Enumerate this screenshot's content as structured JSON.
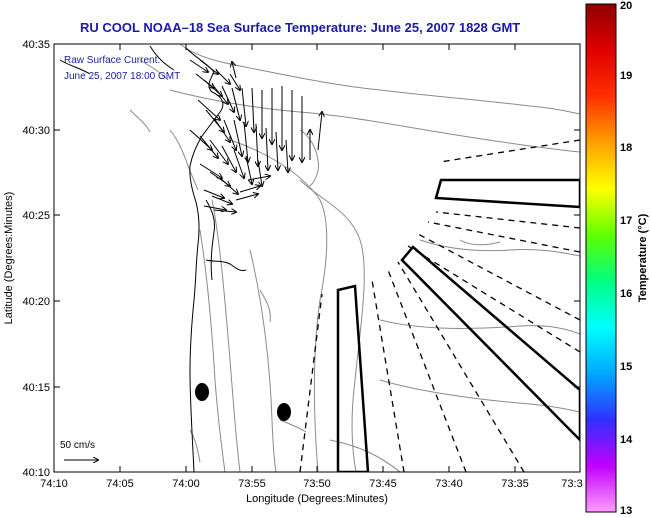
{
  "figure": {
    "title": "RU COOL   NOAA–18  Sea Surface Temperature:  June 25, 2007 1828 GMT",
    "annotation_line1": "Raw Surface Current:",
    "annotation_line2": "June 25, 2007 18:00 GMT",
    "scale_label": "50 cm/s",
    "xlabel": "Longitude (Degrees:Minutes)",
    "ylabel": "Latitude (Degrees:Minutes)",
    "x_ticks": [
      "74:10",
      "74:05",
      "74:00",
      "73:55",
      "73:50",
      "73:45",
      "73:40",
      "73:35",
      "73:3"
    ],
    "y_ticks": [
      "40:35",
      "40:30",
      "40:25",
      "40:20",
      "40:15",
      "40:10"
    ],
    "x_range_minutes_west": [
      10,
      30
    ],
    "y_range_minutes_north": [
      10,
      35
    ],
    "colors": {
      "title": "#1a1aa8",
      "coast": "#000000",
      "contour": "#8a8a8a",
      "box": "#000000"
    }
  },
  "colorbar": {
    "label": "Temperature (°C)",
    "ticks": [
      "20",
      "19",
      "18",
      "17",
      "16",
      "15",
      "14",
      "13"
    ],
    "range": [
      13,
      20
    ],
    "colormap": [
      "#ff9cff",
      "#c000ff",
      "#3030ff",
      "#00a8ff",
      "#00ffff",
      "#00ff80",
      "#60ff00",
      "#ffff00",
      "#ffa000",
      "#ff3000",
      "#e00000",
      "#900000"
    ]
  },
  "map": {
    "markers": [
      {
        "name": "buoy-left",
        "lon": "73:59:30",
        "lat": "40:14:41"
      },
      {
        "name": "buoy-right",
        "lon": "73:52:40",
        "lat": "40:13:25"
      }
    ]
  }
}
